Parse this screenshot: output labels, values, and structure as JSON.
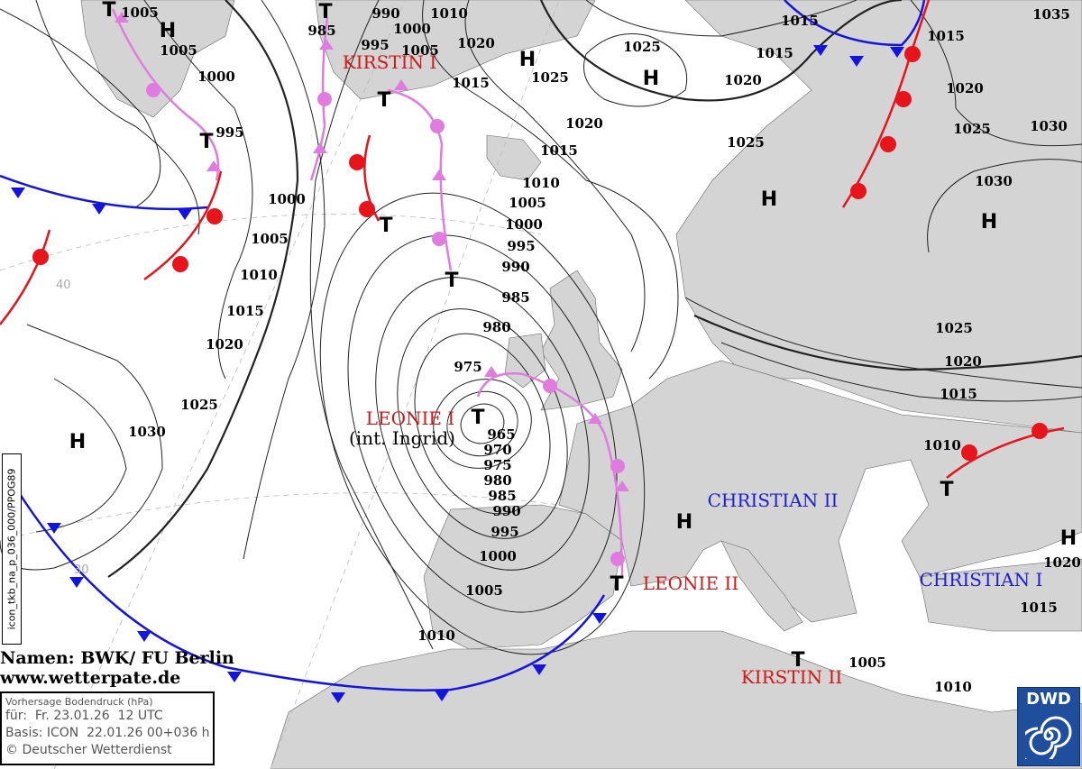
{
  "map": {
    "product": "Vorhersage Bodendruck (hPa)",
    "valid_for": "für:  Fr. 23.01.26  12 UTC",
    "basis": "Basis: ICON  22.01.26 00+036 h",
    "copyright": "© Deutscher Wetterdienst",
    "names_credit": "Namen: BWK/ FU Berlin",
    "website": "www.wetterpate.de",
    "run_id": "icon_tkb_na_p_036_000/PPOG89",
    "logo": "DWD",
    "latitude_labels": [
      "40",
      "30"
    ],
    "colors": {
      "land": "#d4d4d4",
      "sea": "#ffffff",
      "warm_front": "#e8141c",
      "cold_front": "#1414e0",
      "occlusion": "#e07be0",
      "high_name": "#2020d0",
      "low_name": "#d01818"
    },
    "pressure_labels": [
      "1005",
      "1005",
      "1000",
      "995",
      "985",
      "990",
      "1000",
      "995",
      "1005",
      "1010",
      "1020",
      "1015",
      "1025",
      "1025",
      "1020",
      "1015",
      "1010",
      "1005",
      "1000",
      "995",
      "990",
      "985",
      "980",
      "975",
      "965",
      "970",
      "975",
      "980",
      "985",
      "990",
      "995",
      "1000",
      "1005",
      "1010",
      "1000",
      "1005",
      "1010",
      "1015",
      "1020",
      "1025",
      "1030",
      "1015",
      "1015",
      "1020",
      "1025",
      "1035",
      "1015",
      "1020",
      "1025",
      "1030",
      "1030",
      "1025",
      "1020",
      "1015",
      "1010",
      "1020",
      "1015",
      "1005",
      "1010"
    ],
    "pressure_centers": [
      "T",
      "H",
      "T",
      "H",
      "H",
      "T",
      "T",
      "T",
      "T",
      "H",
      "H",
      "H",
      "T",
      "H",
      "T",
      "T",
      "H",
      "T"
    ],
    "systems": [
      {
        "name": "KIRSTIN I",
        "type": "low"
      },
      {
        "name": "LEONIE I",
        "type": "low"
      },
      {
        "name": "(int. Ingrid)",
        "type": "note"
      },
      {
        "name": "CHRISTIAN II",
        "type": "high"
      },
      {
        "name": "LEONIE II",
        "type": "low"
      },
      {
        "name": "CHRISTIAN I",
        "type": "high"
      },
      {
        "name": "KIRSTIN II",
        "type": "low"
      }
    ]
  }
}
